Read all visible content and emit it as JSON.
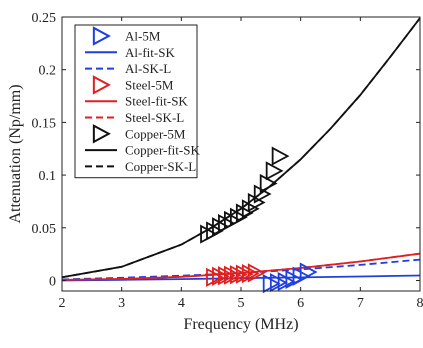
{
  "chart_data": {
    "type": "scatter",
    "title": "",
    "xlabel": "Frequency (MHz)",
    "ylabel": "Attenuation (Np/mm)",
    "xlim": [
      2,
      8
    ],
    "ylim": [
      -0.01,
      0.25
    ],
    "xticks": [
      "2",
      "3",
      "4",
      "5",
      "6",
      "7",
      "8"
    ],
    "yticks": [
      "0",
      "0.05",
      "0.1",
      "0.15",
      "0.2",
      "0.25"
    ],
    "grid": false,
    "legend_position": "top-left",
    "series": [
      {
        "name": "Al-5M",
        "kind": "markers",
        "marker": "triangle-right",
        "color": "#1f3fe0",
        "x": [
          5.5,
          5.62,
          5.75,
          5.88,
          6.0,
          6.12
        ],
        "y": [
          -0.003,
          -0.002,
          -0.001,
          0.001,
          0.004,
          0.008
        ]
      },
      {
        "name": "Al-fit-SK",
        "kind": "line",
        "style": "solid",
        "color": "#1f3fe0",
        "x": [
          2,
          3,
          4,
          5,
          6,
          7,
          8
        ],
        "y": [
          0.0,
          0.0006,
          0.0013,
          0.0021,
          0.0029,
          0.0038,
          0.0047
        ]
      },
      {
        "name": "Al-SK-L",
        "kind": "line",
        "style": "dashed",
        "color": "#1f3fe0",
        "x": [
          2,
          3,
          4,
          5,
          6,
          7,
          8
        ],
        "y": [
          0.001,
          0.0025,
          0.0045,
          0.007,
          0.0105,
          0.0148,
          0.0198
        ]
      },
      {
        "name": "Steel-5M",
        "kind": "markers",
        "marker": "triangle-right",
        "color": "#e02020",
        "x": [
          4.55,
          4.65,
          4.75,
          4.85,
          4.95,
          5.05,
          5.15,
          5.25
        ],
        "y": [
          0.003,
          0.004,
          0.0045,
          0.005,
          0.0055,
          0.006,
          0.0065,
          0.0072
        ]
      },
      {
        "name": "Steel-fit-SK",
        "kind": "line",
        "style": "solid",
        "color": "#e02020",
        "x": [
          2,
          3,
          4,
          5,
          6,
          7,
          8
        ],
        "y": [
          0.0005,
          0.0015,
          0.0035,
          0.007,
          0.0118,
          0.018,
          0.0255
        ]
      },
      {
        "name": "Steel-SK-L",
        "kind": "line",
        "style": "dashed",
        "color": "#e02020",
        "x": [
          2,
          3,
          4,
          5,
          6,
          7,
          8
        ],
        "y": [
          0.0005,
          0.0015,
          0.0035,
          0.007,
          0.0118,
          0.018,
          0.0255
        ]
      },
      {
        "name": "Copper-5M",
        "kind": "markers",
        "marker": "triangle-right",
        "color": "#111111",
        "x": [
          4.45,
          4.55,
          4.65,
          4.75,
          4.85,
          4.95,
          5.05,
          5.15,
          5.25,
          5.35,
          5.45,
          5.55,
          5.65
        ],
        "y": [
          0.044,
          0.047,
          0.051,
          0.054,
          0.057,
          0.06,
          0.064,
          0.068,
          0.074,
          0.082,
          0.092,
          0.104,
          0.118
        ]
      },
      {
        "name": "Copper-fit-SK",
        "kind": "line",
        "style": "solid",
        "color": "#111111",
        "x": [
          2,
          3,
          4,
          4.5,
          5,
          5.5,
          6,
          6.5,
          7,
          7.5,
          8
        ],
        "y": [
          0.003,
          0.013,
          0.034,
          0.05,
          0.068,
          0.09,
          0.115,
          0.144,
          0.176,
          0.212,
          0.249
        ]
      },
      {
        "name": "Copper-SK-L",
        "kind": "line",
        "style": "dashed",
        "color": "#111111",
        "x": [
          2,
          3,
          4,
          4.5,
          5,
          5.5,
          6,
          6.5,
          7,
          7.5,
          8
        ],
        "y": [
          0.003,
          0.013,
          0.034,
          0.05,
          0.068,
          0.09,
          0.115,
          0.144,
          0.176,
          0.212,
          0.249
        ]
      }
    ]
  }
}
